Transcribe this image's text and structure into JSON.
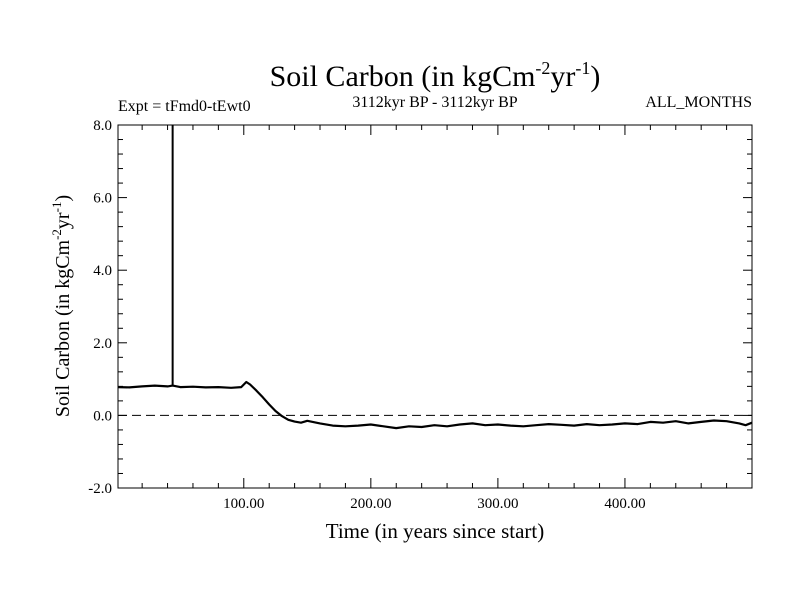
{
  "chart_data": {
    "type": "line",
    "title": "Soil Carbon (in kgCm",
    "title_sup1": "-2",
    "title_mid": "yr",
    "title_sup2": "-1",
    "title_end": ")",
    "experiment": "Expt = tFmd0-tEwt0",
    "period": "3112kyr BP - 3112kyr BP",
    "months": "ALL_MONTHS",
    "xlabel": "Time (in years since start)",
    "ylabel_main": "Soil Carbon (in kgCm",
    "ylabel_sup1": "-2",
    "ylabel_mid": "yr",
    "ylabel_sup2": "-1",
    "ylabel_end": ")",
    "xlim": [
      1,
      500
    ],
    "ylim": [
      -2.0,
      8.0
    ],
    "x_ticks": [
      100,
      200,
      300,
      400
    ],
    "x_tick_labels": [
      "100.00",
      "200.00",
      "300.00",
      "400.00"
    ],
    "y_ticks": [
      -2.0,
      0.0,
      2.0,
      4.0,
      6.0,
      8.0
    ],
    "y_tick_labels": [
      "-2.0",
      "0.0",
      "2.0",
      "4.0",
      "6.0",
      "8.0"
    ],
    "zero_line": 0.0,
    "spike": {
      "x": 44,
      "y_top": 8.0
    },
    "series": [
      {
        "x": [
          1,
          10,
          20,
          30,
          40,
          44,
          50,
          60,
          70,
          80,
          90,
          98,
          102,
          105,
          110,
          115,
          120,
          125,
          130,
          135,
          140,
          145,
          150,
          160,
          170,
          180,
          190,
          200,
          210,
          220,
          230,
          240,
          250,
          260,
          270,
          280,
          290,
          300,
          310,
          320,
          330,
          340,
          350,
          360,
          370,
          380,
          390,
          400,
          410,
          420,
          430,
          440,
          450,
          460,
          470,
          480,
          490,
          495,
          500
        ],
        "values": [
          0.78,
          0.77,
          0.8,
          0.82,
          0.8,
          0.82,
          0.78,
          0.79,
          0.77,
          0.78,
          0.76,
          0.78,
          0.92,
          0.85,
          0.68,
          0.5,
          0.3,
          0.12,
          -0.02,
          -0.12,
          -0.17,
          -0.2,
          -0.15,
          -0.22,
          -0.28,
          -0.3,
          -0.28,
          -0.25,
          -0.3,
          -0.35,
          -0.3,
          -0.32,
          -0.27,
          -0.3,
          -0.25,
          -0.22,
          -0.27,
          -0.25,
          -0.28,
          -0.3,
          -0.27,
          -0.24,
          -0.26,
          -0.28,
          -0.24,
          -0.27,
          -0.25,
          -0.22,
          -0.24,
          -0.18,
          -0.2,
          -0.16,
          -0.22,
          -0.18,
          -0.14,
          -0.16,
          -0.22,
          -0.27,
          -0.2
        ]
      }
    ]
  }
}
